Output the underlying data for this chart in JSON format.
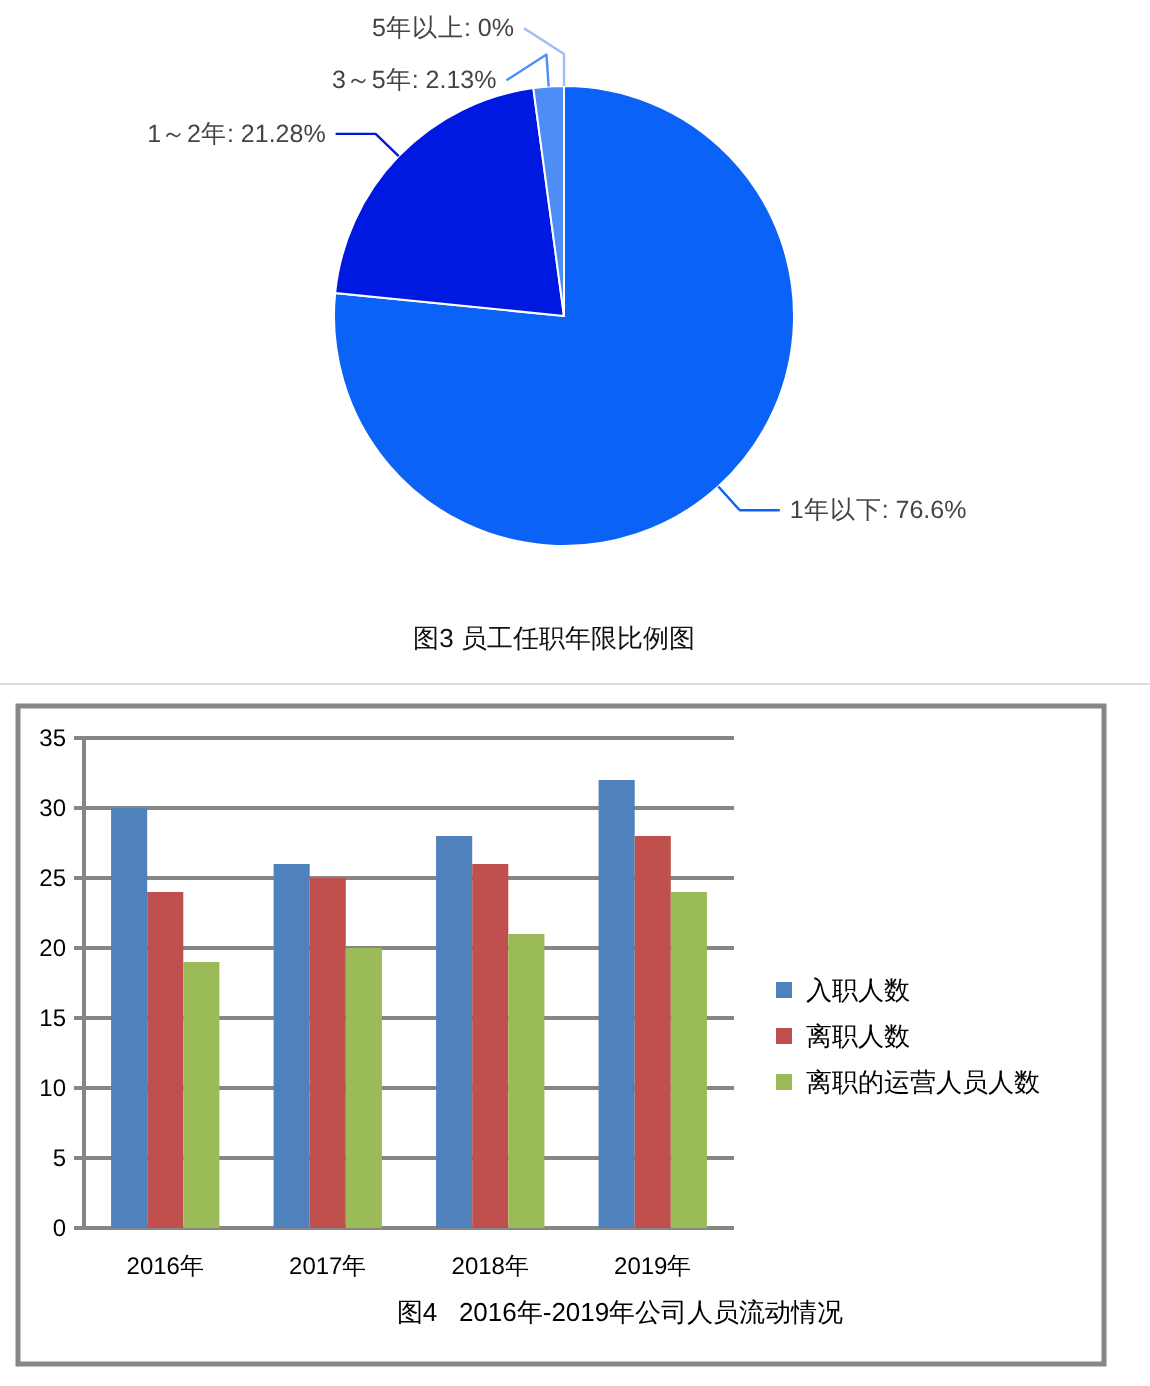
{
  "chart_data": [
    {
      "type": "pie",
      "title": "图3 员工任职年限比例图",
      "categories": [
        "1年以下",
        "1～2年",
        "3～5年",
        "5年以上"
      ],
      "values": [
        76.6,
        21.28,
        2.13,
        0
      ],
      "value_labels": [
        ": 76.6%",
        ": 21.28%",
        ": 2.13%",
        ": 0%"
      ],
      "colors": [
        "#0a62f6",
        "#0019e1",
        "#4e8cf6",
        "#9dbcf7"
      ]
    },
    {
      "type": "bar",
      "title": "图4   2016年-2019年公司人员流动情况",
      "categories": [
        "2016年",
        "2017年",
        "2018年",
        "2019年"
      ],
      "series": [
        {
          "name": "入职人数",
          "color": "#4f81bd",
          "values": [
            30,
            26,
            28,
            32
          ]
        },
        {
          "name": "离职人数",
          "color": "#c0504d",
          "values": [
            24,
            25,
            26,
            28
          ]
        },
        {
          "name": "离职的运营人员人数",
          "color": "#9bbb59",
          "values": [
            19,
            20,
            21,
            24
          ]
        }
      ],
      "ylim": [
        0,
        35
      ],
      "yticks": [
        0,
        5,
        10,
        15,
        20,
        25,
        30,
        35
      ],
      "grid": "y",
      "legend": "right"
    }
  ]
}
